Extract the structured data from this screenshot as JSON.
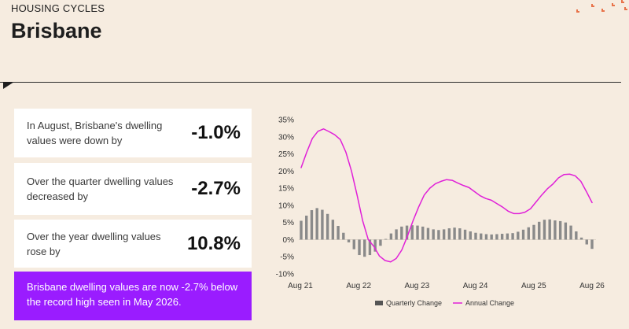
{
  "header": {
    "eyebrow": "HOUSING CYCLES",
    "title": "Brisbane"
  },
  "cards": [
    {
      "desc": "In August, Brisbane's dwelling values were down by",
      "value": "-1.0%"
    },
    {
      "desc": "Over the quarter dwelling values decreased by",
      "value": "-2.7%"
    },
    {
      "desc": "Over the year dwelling values rose by",
      "value": "10.8%"
    }
  ],
  "callout": "Brisbane dwelling values are now -2.7% below the record high seen in May 2026.",
  "colors": {
    "background": "#f6ece0",
    "callout": "#9a1cff",
    "annual_line": "#e020d8",
    "quarterly_bars": "#8a8a8a",
    "deco": "#e8734a"
  },
  "chart_data": {
    "type": "bar+line",
    "ylim": [
      -10,
      35
    ],
    "y_ticks": [
      "35%",
      "30%",
      "25%",
      "20%",
      "15%",
      "10%",
      "5%",
      "0%",
      "-5%",
      "-10%"
    ],
    "x_ticks": [
      "Aug 21",
      "Aug 22",
      "Aug 23",
      "Aug 24",
      "Aug 25",
      "Aug 26"
    ],
    "legend": "bottom",
    "series": [
      {
        "name": "Quarterly Change",
        "type": "bar",
        "values": [
          5.5,
          7.0,
          8.6,
          9.2,
          8.7,
          7.5,
          5.8,
          4.0,
          2.0,
          -0.8,
          -2.8,
          -4.5,
          -5.0,
          -4.5,
          -3.5,
          -1.8,
          0.2,
          1.8,
          3.0,
          3.8,
          4.1,
          4.2,
          4.1,
          3.8,
          3.4,
          3.0,
          2.8,
          3.0,
          3.3,
          3.5,
          3.3,
          2.9,
          2.4,
          2.0,
          1.8,
          1.6,
          1.5,
          1.6,
          1.7,
          1.8,
          1.9,
          2.3,
          2.9,
          3.6,
          4.3,
          5.2,
          5.8,
          5.9,
          5.6,
          5.4,
          5.0,
          4.1,
          2.4,
          0.6,
          -1.4,
          -2.7
        ]
      },
      {
        "name": "Annual Change",
        "type": "line",
        "values": [
          21.0,
          25.5,
          29.5,
          31.6,
          32.3,
          31.5,
          30.6,
          29.2,
          25.5,
          20.0,
          13.0,
          5.5,
          0.0,
          -2.0,
          -4.8,
          -6.1,
          -6.5,
          -5.5,
          -3.0,
          1.0,
          5.5,
          9.5,
          13.0,
          15.0,
          16.3,
          17.0,
          17.5,
          17.3,
          16.5,
          15.8,
          15.2,
          14.0,
          12.8,
          12.0,
          11.5,
          10.5,
          9.5,
          8.3,
          7.6,
          7.6,
          8.0,
          9.0,
          11.0,
          13.0,
          14.8,
          16.2,
          18.0,
          19.0,
          19.1,
          18.6,
          17.0,
          14.0,
          10.8
        ]
      }
    ]
  }
}
